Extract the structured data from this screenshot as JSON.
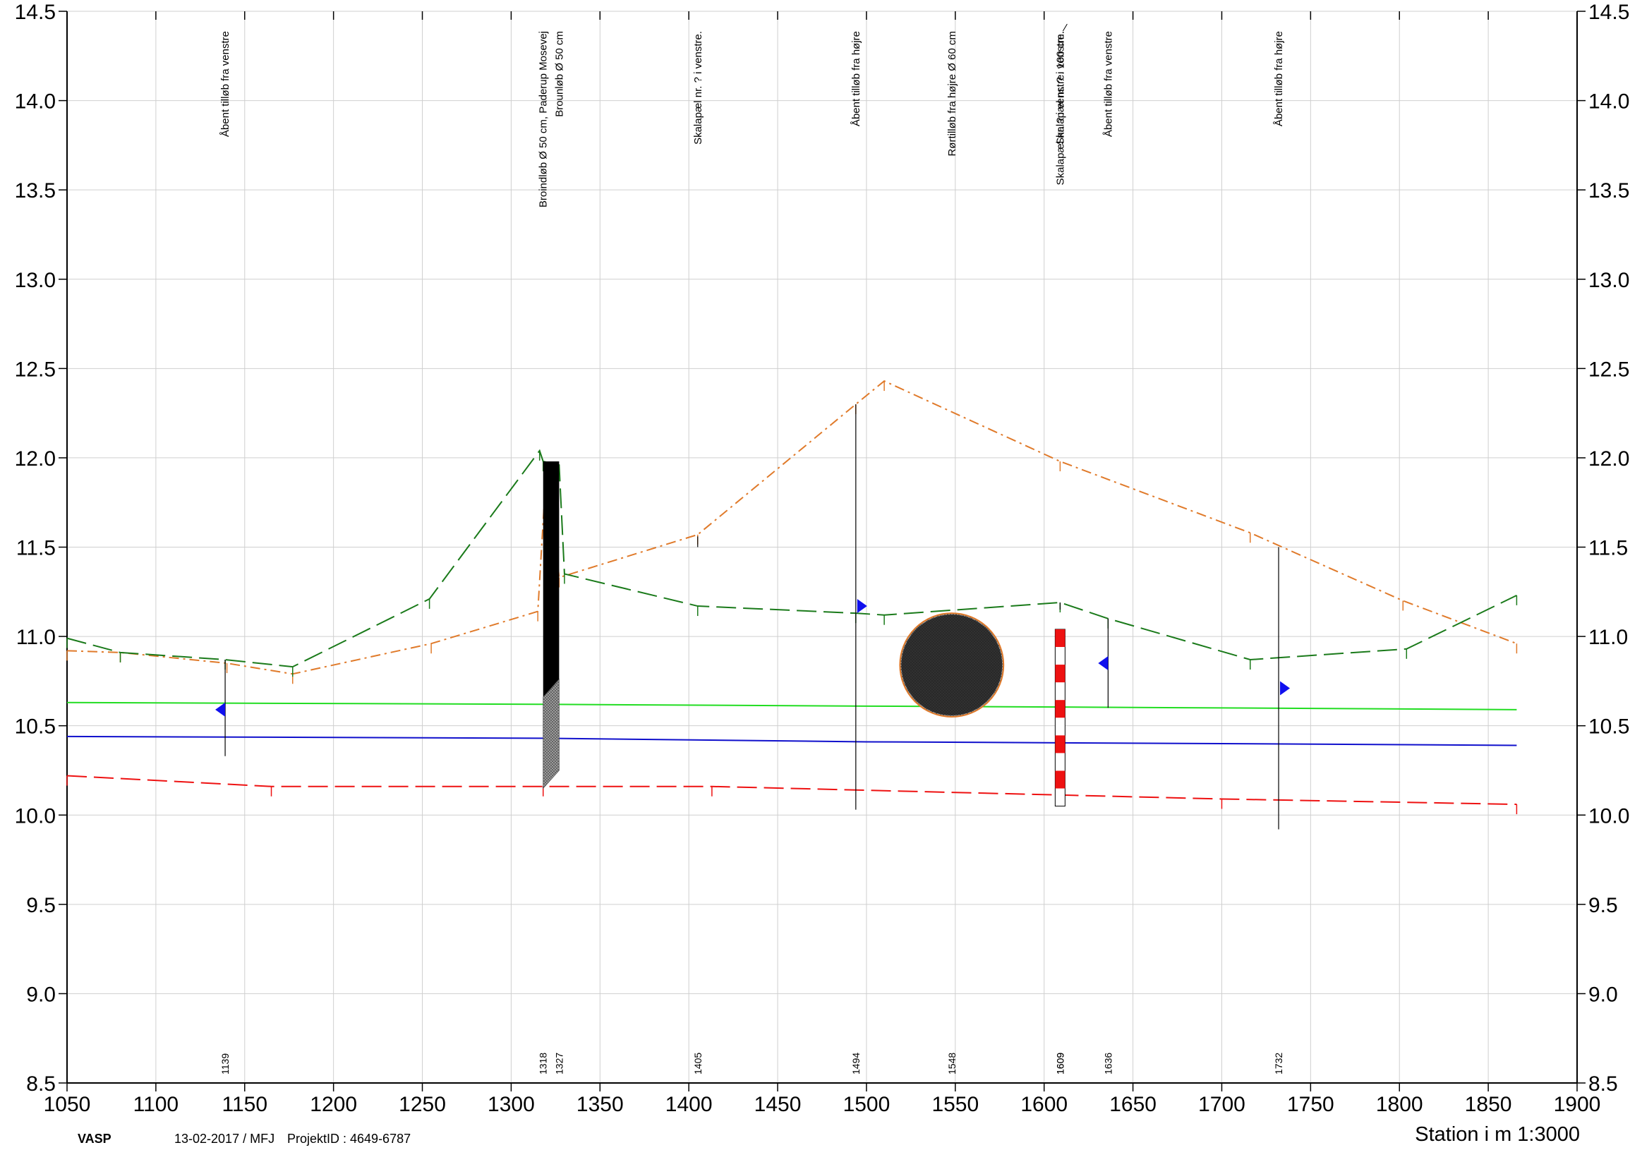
{
  "chart_data": {
    "type": "line",
    "xlabel": "Station i m",
    "scale_label": "1:3000",
    "xlim": [
      1050,
      1900
    ],
    "ylim": [
      8.5,
      14.5
    ],
    "x_ticks": [
      1050,
      1100,
      1150,
      1200,
      1250,
      1300,
      1350,
      1400,
      1450,
      1500,
      1550,
      1600,
      1650,
      1700,
      1750,
      1800,
      1850,
      1900
    ],
    "y_ticks": [
      "8.5",
      "9.0",
      "9.5",
      "10.0",
      "10.5",
      "11.0",
      "11.5",
      "12.0",
      "12.5",
      "13.0",
      "13.5",
      "14.0",
      "14.5"
    ],
    "grid": true,
    "series": [
      {
        "key": "right-bank",
        "color": "#e07a2a",
        "style": "dashdot",
        "x": [
          1050,
          1080,
          1140,
          1177,
          1255,
          1315,
          1320,
          1327,
          1405,
          1494,
          1510,
          1609,
          1716,
          1802,
          1866
        ],
        "y": [
          10.92,
          10.91,
          10.85,
          10.79,
          10.96,
          11.14,
          11.98,
          11.33,
          11.57,
          12.3,
          12.43,
          11.98,
          11.58,
          11.2,
          10.96
        ]
      },
      {
        "key": "left-bank",
        "color": "#1a7a1a",
        "style": "dashed",
        "x": [
          1050,
          1080,
          1139,
          1177,
          1254,
          1316,
          1318,
          1327,
          1330,
          1405,
          1494,
          1510,
          1609,
          1636,
          1716,
          1804,
          1866
        ],
        "y": [
          10.99,
          10.91,
          10.87,
          10.83,
          11.21,
          12.04,
          11.98,
          11.96,
          11.35,
          11.17,
          11.13,
          11.12,
          11.19,
          11.1,
          10.87,
          10.93,
          11.23
        ]
      },
      {
        "key": "water-level",
        "color": "#22dd22",
        "style": "solid",
        "x": [
          1050,
          1318,
          1500,
          1700,
          1866
        ],
        "y": [
          10.63,
          10.62,
          10.61,
          10.6,
          10.59
        ]
      },
      {
        "key": "energy-line",
        "color": "#1010cc",
        "style": "solid",
        "x": [
          1050,
          1318,
          1500,
          1700,
          1866
        ],
        "y": [
          10.44,
          10.43,
          10.41,
          10.4,
          10.39
        ]
      },
      {
        "key": "bed",
        "color": "#ee1111",
        "style": "dashed",
        "x": [
          1050,
          1165,
          1318,
          1413,
          1700,
          1866
        ],
        "y": [
          10.22,
          10.16,
          10.16,
          10.16,
          10.09,
          10.06
        ]
      }
    ],
    "features": [
      {
        "station": "1139",
        "x": 1139,
        "label": "Åbent tilløb fra venstre",
        "y_top": 10.87,
        "y_bottom": 10.33,
        "marker": "left",
        "marker_y": 10.59
      },
      {
        "station": "1318",
        "x": 1318,
        "label": "Broindløb Ø 50 cm, Paderup Mosevej",
        "y_top": 11.98,
        "y_bottom": 10.1
      },
      {
        "station": "1327",
        "x": 1327,
        "label": "Brounløb Ø 50 cm",
        "y_top": 11.97,
        "y_bottom": 10.25
      },
      {
        "station": "1405",
        "x": 1405,
        "label": "Skalapæl nr. ? i venstre.",
        "y_top": 11.56,
        "y_bottom": 11.5
      },
      {
        "station": "1494",
        "x": 1494,
        "label": "Åbent tilløb fra højre",
        "y_top": 12.3,
        "y_bottom": 10.03,
        "marker": "right",
        "marker_y": 11.17
      },
      {
        "station": "1548",
        "x": 1548,
        "label": "Rørtilløb fra højre Ø 60 cm",
        "pipe_center_y": 10.84,
        "pipe_radius_m": 0.29
      },
      {
        "station": "1609",
        "x": 1609,
        "label": "Skalapæl nr. ? i venstre. 100 cm.",
        "pole_top": 11.04,
        "pole_bottom": 10.05
      },
      {
        "station": "1609",
        "x": 1609,
        "label": "Skalapæl nr. ? i venstre.",
        "y_top": 11.19,
        "y_bottom": 11.15
      },
      {
        "station": "1636",
        "x": 1636,
        "label": "Åbent tilløb fra venstre",
        "y_top": 11.1,
        "y_bottom": 10.6,
        "marker": "left",
        "marker_y": 10.85
      },
      {
        "station": "1732",
        "x": 1732,
        "label": "Åbent tilløb fra højre",
        "y_top": 11.5,
        "y_bottom": 9.92,
        "marker": "right",
        "marker_y": 10.71
      }
    ]
  },
  "footer": {
    "app": "VASP",
    "date_user": "13-02-2017 / MFJ",
    "project": "ProjektID : 4649-6787"
  }
}
